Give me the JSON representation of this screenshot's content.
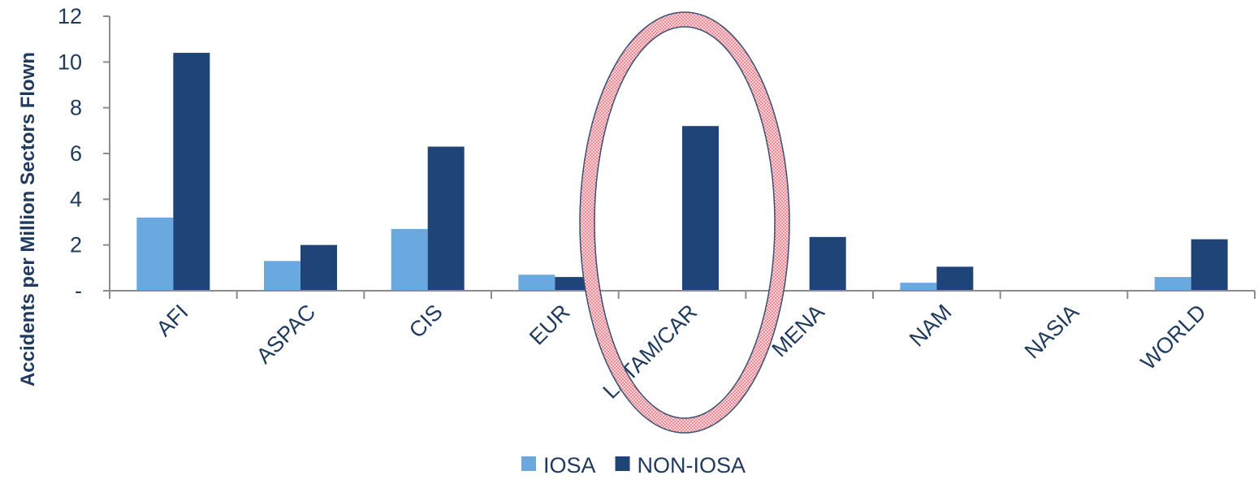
{
  "chart_data": {
    "type": "bar",
    "title": "",
    "xlabel": "",
    "ylabel": "Accidents per Million Sectors Flown",
    "ylim": [
      0,
      12
    ],
    "yticks": [
      0,
      2,
      4,
      6,
      8,
      10,
      12
    ],
    "ytick_labels": [
      "-",
      "2",
      "4",
      "6",
      "8",
      "10",
      "12"
    ],
    "categories": [
      "AFI",
      "ASPAC",
      "CIS",
      "EUR",
      "LATAM/CAR",
      "MENA",
      "NAM",
      "NASIA",
      "WORLD"
    ],
    "series": [
      {
        "name": "IOSA",
        "color": "#6aa9e0",
        "values": [
          3.2,
          1.3,
          2.7,
          0.7,
          0,
          0,
          0.35,
          0,
          0.6
        ]
      },
      {
        "name": "NON-IOSA",
        "color": "#1f4478",
        "values": [
          10.4,
          2.0,
          6.3,
          0.6,
          7.2,
          2.35,
          1.05,
          0,
          2.25
        ]
      }
    ],
    "legend_position": "bottom",
    "grid": false,
    "highlight": {
      "category": "LATAM/CAR",
      "shape": "ellipse",
      "color": "#e05a6a"
    }
  }
}
